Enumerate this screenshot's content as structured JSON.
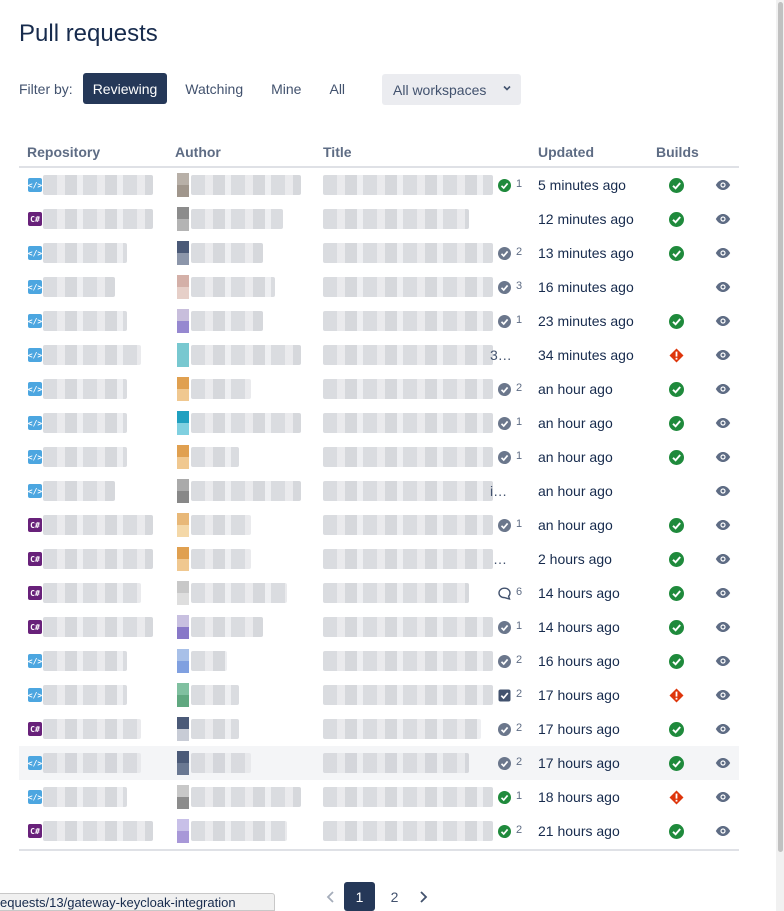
{
  "page": {
    "title": "Pull requests"
  },
  "filter": {
    "label": "Filter by:",
    "options": [
      "Reviewing",
      "Watching",
      "Mine",
      "All"
    ],
    "active": "Reviewing",
    "workspace": "All workspaces"
  },
  "table": {
    "columns": {
      "repository": "Repository",
      "author": "Author",
      "title": "Title",
      "updated": "Updated",
      "builds": "Builds"
    },
    "rows": [
      {
        "repo_type": "web",
        "repo_glyph": "</>",
        "avatar_colors": [
          "#b8b0a8",
          "#a0968c"
        ],
        "title_tail": "",
        "status": "approved",
        "count": "1",
        "updated": "5 minutes ago",
        "build": "success"
      },
      {
        "repo_type": "cs",
        "repo_glyph": "C#",
        "avatar_colors": [
          "#8c8c8c",
          "#b4b4b4"
        ],
        "title_tail": "",
        "status": "none",
        "count": "",
        "updated": "12 minutes ago",
        "build": "success"
      },
      {
        "repo_type": "web",
        "repo_glyph": "</>",
        "avatar_colors": [
          "#4b5a78",
          "#8c96aa"
        ],
        "title_tail": "",
        "status": "pending",
        "count": "2",
        "updated": "13 minutes ago",
        "build": "success"
      },
      {
        "repo_type": "web",
        "repo_glyph": "</>",
        "avatar_colors": [
          "#d4b0a8",
          "#e6cfc8"
        ],
        "title_tail": "",
        "status": "pending",
        "count": "3",
        "updated": "16 minutes ago",
        "build": "none"
      },
      {
        "repo_type": "web",
        "repo_glyph": "</>",
        "avatar_colors": [
          "#c8bedc",
          "#9688d0"
        ],
        "title_tail": "",
        "status": "pending",
        "count": "1",
        "updated": "23 minutes ago",
        "build": "success"
      },
      {
        "repo_type": "web",
        "repo_glyph": "</>",
        "avatar_colors": [
          "#78c8d0",
          "#78c8d0"
        ],
        "title_tail": "3…",
        "status": "none",
        "count": "",
        "updated": "34 minutes ago",
        "build": "failed"
      },
      {
        "repo_type": "web",
        "repo_glyph": "</>",
        "avatar_colors": [
          "#e0a050",
          "#f0c890"
        ],
        "title_tail": "",
        "status": "pending",
        "count": "2",
        "updated": "an hour ago",
        "build": "success"
      },
      {
        "repo_type": "web",
        "repo_glyph": "</>",
        "avatar_colors": [
          "#20a0c0",
          "#80d0e0"
        ],
        "title_tail": "",
        "status": "pending",
        "count": "1",
        "updated": "an hour ago",
        "build": "success"
      },
      {
        "repo_type": "web",
        "repo_glyph": "</>",
        "avatar_colors": [
          "#e0a050",
          "#f0c890"
        ],
        "title_tail": "",
        "status": "pending",
        "count": "1",
        "updated": "an hour ago",
        "build": "success"
      },
      {
        "repo_type": "web",
        "repo_glyph": "</>",
        "avatar_colors": [
          "#aaaaaa",
          "#888888"
        ],
        "title_tail": "i…",
        "status": "none",
        "count": "",
        "updated": "an hour ago",
        "build": "none"
      },
      {
        "repo_type": "cs",
        "repo_glyph": "C#",
        "avatar_colors": [
          "#e8b878",
          "#f4d8a8"
        ],
        "title_tail": "",
        "status": "pending",
        "count": "1",
        "updated": "an hour ago",
        "build": "success"
      },
      {
        "repo_type": "cs",
        "repo_glyph": "C#",
        "avatar_colors": [
          "#e0a050",
          "#f0c890"
        ],
        "title_tail": "…",
        "status": "none",
        "count": "",
        "updated": "2 hours ago",
        "build": "success"
      },
      {
        "repo_type": "cs",
        "repo_glyph": "C#",
        "avatar_colors": [
          "#c8c8c8",
          "#dedede"
        ],
        "title_tail": "",
        "status": "comment",
        "count": "6",
        "updated": "14 hours ago",
        "build": "success"
      },
      {
        "repo_type": "cs",
        "repo_glyph": "C#",
        "avatar_colors": [
          "#c8c0e0",
          "#8878c8"
        ],
        "title_tail": "",
        "status": "pending",
        "count": "1",
        "updated": "14 hours ago",
        "build": "success"
      },
      {
        "repo_type": "web",
        "repo_glyph": "</>",
        "avatar_colors": [
          "#a8c0e8",
          "#80a0e0"
        ],
        "title_tail": "",
        "status": "pending",
        "count": "2",
        "updated": "16 hours ago",
        "build": "success"
      },
      {
        "repo_type": "web",
        "repo_glyph": "</>",
        "avatar_colors": [
          "#80c0a0",
          "#60a880"
        ],
        "title_tail": "",
        "status": "task",
        "count": "2",
        "updated": "17 hours ago",
        "build": "failed"
      },
      {
        "repo_type": "cs",
        "repo_glyph": "C#",
        "avatar_colors": [
          "#4b5a78",
          "#c8ccd6"
        ],
        "title_tail": "",
        "status": "pending",
        "count": "2",
        "updated": "17 hours ago",
        "build": "success"
      },
      {
        "repo_type": "web",
        "repo_glyph": "</>",
        "avatar_colors": [
          "#4b5a78",
          "#6a7892"
        ],
        "title_tail": "",
        "status": "pending",
        "count": "2",
        "updated": "17 hours ago",
        "build": "success"
      },
      {
        "repo_type": "web",
        "repo_glyph": "</>",
        "avatar_colors": [
          "#c8c8c8",
          "#8c8c8c"
        ],
        "title_tail": "",
        "status": "approved",
        "count": "1",
        "updated": "18 hours ago",
        "build": "failed"
      },
      {
        "repo_type": "cs",
        "repo_glyph": "C#",
        "avatar_colors": [
          "#c8c0e8",
          "#a898d8"
        ],
        "title_tail": "",
        "status": "approved",
        "count": "2",
        "updated": "21 hours ago",
        "build": "success"
      }
    ]
  },
  "pagination": {
    "pages": [
      "1",
      "2"
    ],
    "current": "1"
  },
  "status_bar": {
    "url": "equests/13/gateway-keycloak-integration"
  },
  "colors": {
    "primary": "#253858",
    "success": "#36b37e",
    "success_dark": "#1f8a3c",
    "danger": "#de350b",
    "muted": "#6b778c"
  },
  "icons": {
    "approved": "check-circle-icon",
    "pending": "check-circle-gray-icon",
    "comment": "comment-icon",
    "task": "task-checkbox-icon",
    "build_success": "build-success-icon",
    "build_failed": "build-failed-icon",
    "watch": "eye-icon"
  }
}
